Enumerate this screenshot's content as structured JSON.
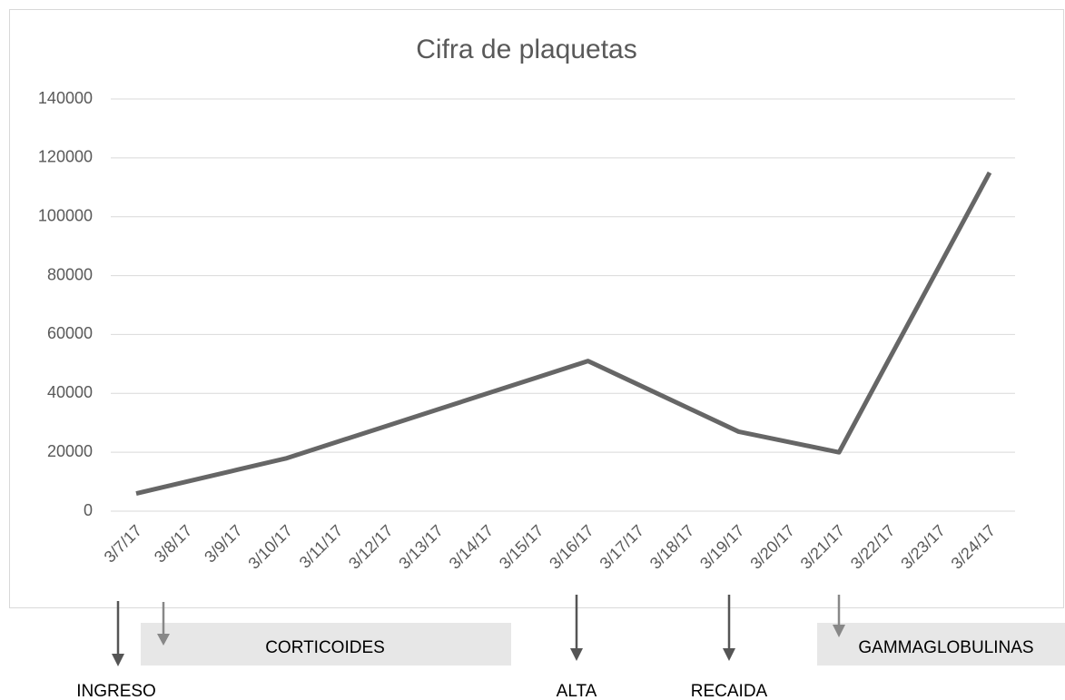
{
  "chart_data": {
    "type": "line",
    "title": "Cifra de plaquetas",
    "categories": [
      "3/7/17",
      "3/8/17",
      "3/9/17",
      "3/10/17",
      "3/11/17",
      "3/12/17",
      "3/13/17",
      "3/14/17",
      "3/15/17",
      "3/16/17",
      "3/17/17",
      "3/18/17",
      "3/19/17",
      "3/20/17",
      "3/21/17",
      "3/22/17",
      "3/23/17",
      "3/24/17"
    ],
    "series": [
      {
        "name": "Cifra de plaquetas",
        "color": "#666666",
        "values": [
          6000,
          10000,
          14000,
          18000,
          23500,
          29000,
          34500,
          40000,
          45500,
          51000,
          43000,
          35000,
          27000,
          23500,
          20000,
          51700,
          83300,
          115000
        ]
      }
    ],
    "ylim": [
      0,
      140000
    ],
    "yticks": [
      0,
      20000,
      40000,
      60000,
      80000,
      100000,
      120000,
      140000
    ],
    "grid": true,
    "annotations": [
      "INGRESO",
      "CORTICOIDES",
      "ALTA",
      "RECAIDA",
      "GAMMAGLOBULINAS"
    ]
  }
}
